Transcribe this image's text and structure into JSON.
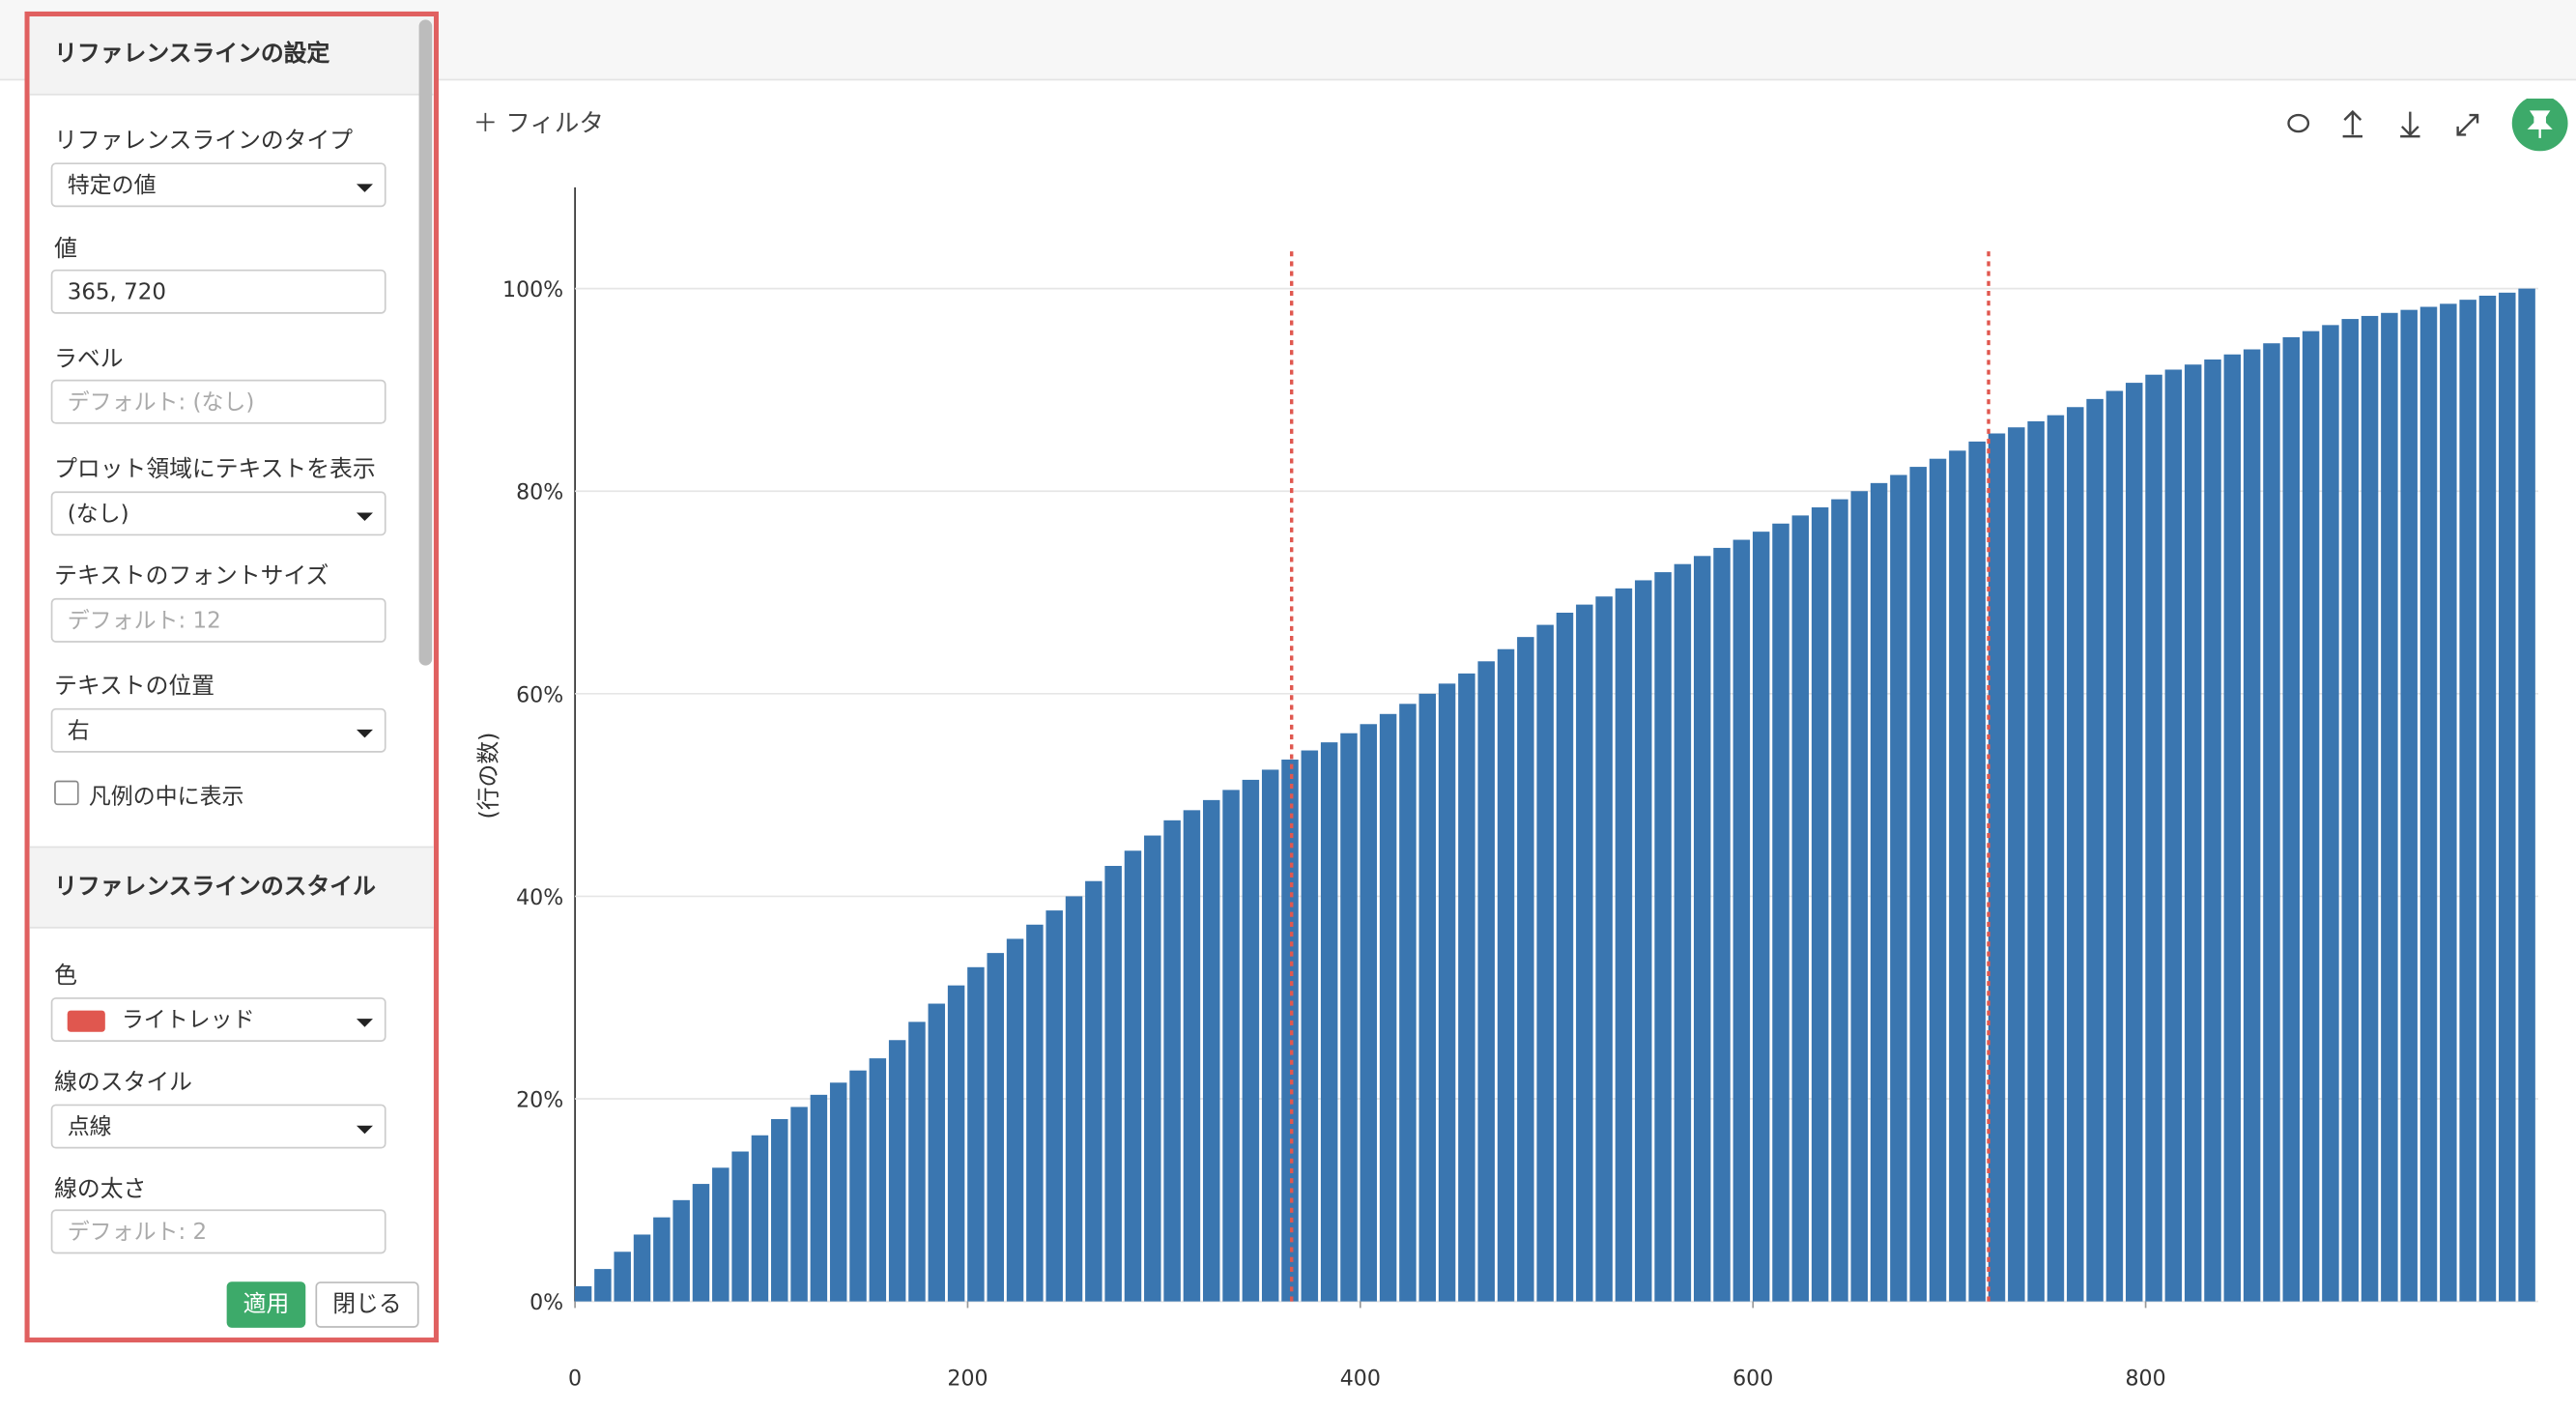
{
  "panel": {
    "title": "リファレンスラインの設定",
    "fields": [
      {
        "label": "リファレンスラインのタイプ",
        "value": "特定の値"
      },
      {
        "label": "値",
        "value": "365, 720"
      },
      {
        "label": "ラベル",
        "placeholder": "デフォルト: (なし)"
      },
      {
        "label": "プロット領域にテキストを表示",
        "value": "(なし)"
      },
      {
        "label": "テキストのフォントサイズ",
        "placeholder": "デフォルト: 12"
      },
      {
        "label": "テキストの位置",
        "value": "右"
      }
    ],
    "checkbox": "凡例の中に表示",
    "style_title": "リファレンスラインのスタイル",
    "style_fields": [
      {
        "label": "色",
        "value": "ライトレッド"
      },
      {
        "label": "線のスタイル",
        "value": "点線"
      },
      {
        "label": "線の太さ",
        "placeholder": "デフォルト: 2"
      }
    ],
    "buttons": [
      "適用",
      "閉じる"
    ]
  },
  "toolbar": {
    "filter": "フィルタ"
  },
  "chart_data": {
    "type": "bar",
    "y_label": "(行の数)",
    "color": "#3a76b0",
    "x": [
      0,
      10,
      20,
      30,
      40,
      50,
      60,
      70,
      80,
      90,
      100,
      110,
      120,
      130,
      140,
      150,
      160,
      170,
      180,
      190,
      200,
      210,
      220,
      230,
      240,
      250,
      260,
      270,
      280,
      290,
      300,
      310,
      320,
      330,
      340,
      350,
      360,
      370,
      380,
      390,
      400,
      410,
      420,
      430,
      440,
      450,
      460,
      470,
      480,
      490,
      500,
      510,
      520,
      530,
      540,
      550,
      560,
      570,
      580,
      590,
      600,
      610,
      620,
      630,
      640,
      650,
      660,
      670,
      680,
      690,
      700,
      710,
      720,
      730,
      740,
      750,
      760,
      770,
      780,
      790,
      800,
      810,
      820,
      830,
      840,
      850,
      860,
      870,
      880,
      890,
      900,
      910,
      920,
      930,
      940,
      950,
      960,
      970,
      980,
      990
    ],
    "values": [
      1.5,
      3.2,
      4.9,
      6.6,
      8.3,
      10,
      11.6,
      13.2,
      14.8,
      16.4,
      18,
      19.2,
      20.4,
      21.6,
      22.8,
      24,
      25.8,
      27.6,
      29.4,
      31.2,
      33,
      34.4,
      35.8,
      37.2,
      38.6,
      40,
      41.5,
      43,
      44.5,
      46,
      47.5,
      48.5,
      49.5,
      50.5,
      51.5,
      52.5,
      53.5,
      54.4,
      55.2,
      56.1,
      57,
      58,
      59,
      60,
      61,
      62,
      63.2,
      64.4,
      65.6,
      66.8,
      68,
      68.8,
      69.6,
      70.4,
      71.2,
      72,
      72.8,
      73.6,
      74.4,
      75.2,
      76,
      76.8,
      77.6,
      78.4,
      79.2,
      80,
      80.8,
      81.6,
      82.4,
      83.2,
      84,
      84.9,
      85.7,
      86.3,
      86.9,
      87.5,
      88.3,
      89.1,
      89.9,
      90.7,
      91.5,
      92,
      92.5,
      93,
      93.5,
      94,
      94.6,
      95.2,
      95.8,
      96.4,
      97,
      97.3,
      97.6,
      97.9,
      98.2,
      98.5,
      98.9,
      99.3,
      99.6,
      100
    ],
    "xlim": [
      0,
      1000
    ],
    "xticks": [
      0,
      200,
      400,
      600,
      800
    ],
    "ylim": [
      0,
      110
    ],
    "yticks": [
      {
        "value": 0,
        "label": "0%"
      },
      {
        "value": 20,
        "label": "20%"
      },
      {
        "value": 40,
        "label": "40%"
      },
      {
        "value": 60,
        "label": "60%"
      },
      {
        "value": 80,
        "label": "80%"
      },
      {
        "value": 100,
        "label": "100%"
      }
    ],
    "grid": true,
    "reference_lines": [
      365,
      720
    ],
    "reference_line_color": "#e0574f"
  }
}
